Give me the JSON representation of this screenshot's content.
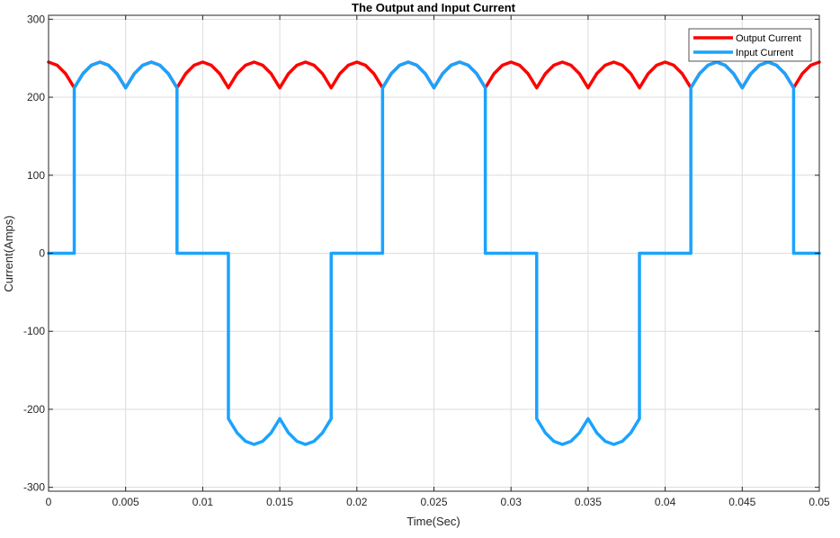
{
  "chart_data": {
    "type": "line",
    "title": "The Output and Input Current",
    "xlabel": "Time(Sec)",
    "ylabel": "Current(Amps)",
    "xlim": [
      0,
      0.05
    ],
    "ylim": [
      -305,
      305
    ],
    "grid": true,
    "legend_position": "top-right",
    "x_ticks": [
      0,
      0.005,
      0.01,
      0.015,
      0.02,
      0.025,
      0.03,
      0.035,
      0.04,
      0.045,
      0.05
    ],
    "x_tick_labels": [
      "0",
      "0.005",
      "0.01",
      "0.015",
      "0.02",
      "0.025",
      "0.03",
      "0.035",
      "0.04",
      "0.045",
      "0.05"
    ],
    "y_ticks": [
      -300,
      -200,
      -100,
      0,
      100,
      200,
      300
    ],
    "y_tick_labels": [
      "-300",
      "-200",
      "-100",
      "0",
      "100",
      "200",
      "300"
    ],
    "series": [
      {
        "name": "Output Current",
        "color": "#ff0000",
        "x": [
          0,
          0.000556,
          0.001111,
          0.001667,
          0.002222,
          0.002778,
          0.003333,
          0.003889,
          0.004444,
          0.005,
          0.005556,
          0.006111,
          0.006667,
          0.007222,
          0.007778,
          0.008333,
          0.008889,
          0.009444,
          0.01,
          0.010556,
          0.011111,
          0.011667,
          0.012222,
          0.012778,
          0.013333,
          0.013889,
          0.014444,
          0.015,
          0.015556,
          0.016111,
          0.016667,
          0.017222,
          0.017778,
          0.018333,
          0.018889,
          0.019444,
          0.02,
          0.020556,
          0.021111,
          0.021667,
          0.022222,
          0.022778,
          0.023333,
          0.023889,
          0.024444,
          0.025,
          0.025556,
          0.026111,
          0.026667,
          0.027222,
          0.027778,
          0.028333,
          0.028889,
          0.029444,
          0.03,
          0.030556,
          0.031111,
          0.031667,
          0.032222,
          0.032778,
          0.033333,
          0.033889,
          0.034444,
          0.035,
          0.035556,
          0.036111,
          0.036667,
          0.037222,
          0.037778,
          0.038333,
          0.038889,
          0.039444,
          0.04,
          0.040556,
          0.041111,
          0.041667,
          0.042222,
          0.042778,
          0.043333,
          0.043889,
          0.044444,
          0.045,
          0.045556,
          0.046111,
          0.046667,
          0.047222,
          0.047778,
          0.048333,
          0.048889,
          0.049444,
          0.05
        ],
        "y": [
          245,
          241,
          230,
          212,
          230,
          241,
          245,
          241,
          230,
          212,
          230,
          241,
          245,
          241,
          230,
          212,
          230,
          241,
          245,
          241,
          230,
          212,
          230,
          241,
          245,
          241,
          230,
          212,
          230,
          241,
          245,
          241,
          230,
          212,
          230,
          241,
          245,
          241,
          230,
          212,
          230,
          241,
          245,
          241,
          230,
          212,
          230,
          241,
          245,
          241,
          230,
          212,
          230,
          241,
          245,
          241,
          230,
          212,
          230,
          241,
          245,
          241,
          230,
          212,
          230,
          241,
          245,
          241,
          230,
          212,
          230,
          241,
          245,
          241,
          230,
          212,
          230,
          241,
          245,
          241,
          230,
          212,
          230,
          241,
          245,
          241,
          230,
          212,
          230,
          241,
          245
        ]
      },
      {
        "name": "Input Current",
        "color": "#1aa3ff",
        "x": [
          0,
          0.001667,
          0.001667,
          0.002222,
          0.002778,
          0.003333,
          0.003889,
          0.004444,
          0.005,
          0.005556,
          0.006111,
          0.006667,
          0.007222,
          0.007778,
          0.008333,
          0.008333,
          0.011667,
          0.011667,
          0.012222,
          0.012778,
          0.013333,
          0.013889,
          0.014444,
          0.015,
          0.015556,
          0.016111,
          0.016667,
          0.017222,
          0.017778,
          0.018333,
          0.018333,
          0.021667,
          0.021667,
          0.022222,
          0.022778,
          0.023333,
          0.023889,
          0.024444,
          0.025,
          0.025556,
          0.026111,
          0.026667,
          0.027222,
          0.027778,
          0.028333,
          0.028333,
          0.031667,
          0.031667,
          0.032222,
          0.032778,
          0.033333,
          0.033889,
          0.034444,
          0.035,
          0.035556,
          0.036111,
          0.036667,
          0.037222,
          0.037778,
          0.038333,
          0.038333,
          0.041667,
          0.041667,
          0.042222,
          0.042778,
          0.043333,
          0.043889,
          0.044444,
          0.045,
          0.045556,
          0.046111,
          0.046667,
          0.047222,
          0.047778,
          0.048333,
          0.048333,
          0.05
        ],
        "y": [
          0,
          0,
          212,
          230,
          241,
          245,
          241,
          230,
          212,
          230,
          241,
          245,
          241,
          230,
          212,
          0,
          0,
          -212,
          -230,
          -241,
          -245,
          -241,
          -230,
          -212,
          -230,
          -241,
          -245,
          -241,
          -230,
          -212,
          0,
          0,
          212,
          230,
          241,
          245,
          241,
          230,
          212,
          230,
          241,
          245,
          241,
          230,
          212,
          0,
          0,
          -212,
          -230,
          -241,
          -245,
          -241,
          -230,
          -212,
          -230,
          -241,
          -245,
          -241,
          -230,
          -212,
          0,
          0,
          212,
          230,
          241,
          245,
          241,
          230,
          212,
          230,
          241,
          245,
          241,
          230,
          212,
          0,
          0
        ]
      }
    ]
  }
}
